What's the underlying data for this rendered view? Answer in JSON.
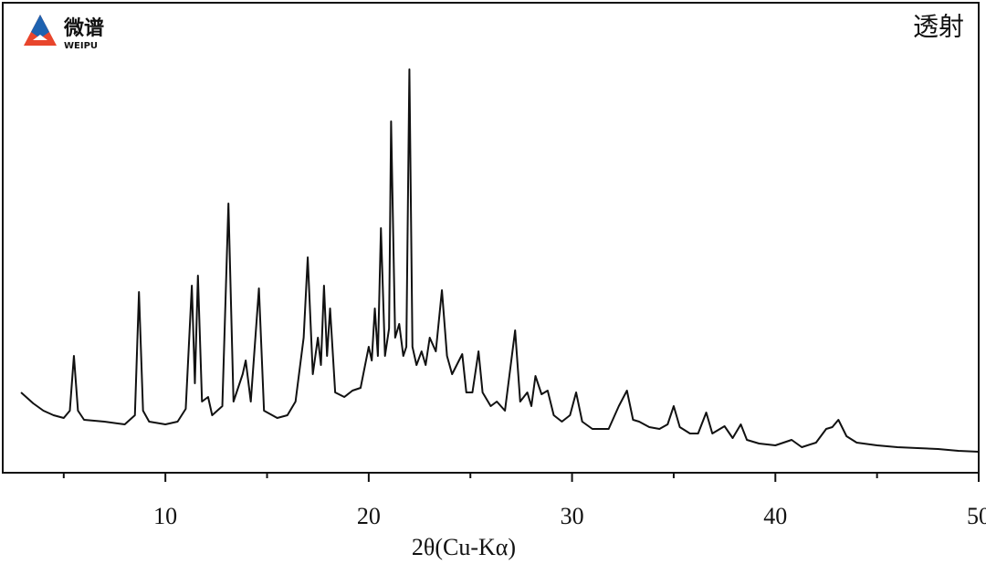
{
  "logo": {
    "name": "微谱",
    "sub": "WEIPU"
  },
  "chart_data": {
    "type": "line",
    "annotation": "透射",
    "x_label": "2θ(Cu-Kα)",
    "color": "#111111",
    "xlim": [
      2,
      50
    ],
    "xticks": [
      10,
      20,
      30,
      40,
      50
    ],
    "xminorticks": [
      5,
      15,
      25,
      35,
      45
    ],
    "ylim": [
      0,
      515
    ],
    "x": [
      2.9,
      3.5,
      4.0,
      4.5,
      5.0,
      5.3,
      5.5,
      5.7,
      6.0,
      7.0,
      8.0,
      8.5,
      8.7,
      8.9,
      9.2,
      10.0,
      10.6,
      11.0,
      11.3,
      11.45,
      11.6,
      11.8,
      12.1,
      12.3,
      12.8,
      13.1,
      13.35,
      13.8,
      13.95,
      14.2,
      14.6,
      14.85,
      15.5,
      16.0,
      16.4,
      16.8,
      17.0,
      17.25,
      17.5,
      17.65,
      17.8,
      17.95,
      18.1,
      18.35,
      18.8,
      19.2,
      19.6,
      20.0,
      20.15,
      20.3,
      20.45,
      20.6,
      20.8,
      21.0,
      21.1,
      21.3,
      21.5,
      21.7,
      21.85,
      22.0,
      22.15,
      22.35,
      22.6,
      22.8,
      23.0,
      23.3,
      23.6,
      23.85,
      24.1,
      24.6,
      24.8,
      25.1,
      25.4,
      25.6,
      26.0,
      26.3,
      26.7,
      27.2,
      27.45,
      27.8,
      28.0,
      28.2,
      28.5,
      28.8,
      29.1,
      29.5,
      29.9,
      30.2,
      30.5,
      31.0,
      31.8,
      32.3,
      32.7,
      33.0,
      33.3,
      33.8,
      34.3,
      34.7,
      35.0,
      35.3,
      35.8,
      36.2,
      36.6,
      36.9,
      37.5,
      37.9,
      38.3,
      38.6,
      39.2,
      40.0,
      40.8,
      41.3,
      42.0,
      42.5,
      42.8,
      43.1,
      43.5,
      44.0,
      45.0,
      46.0,
      47.0,
      48.0,
      49.0,
      50.0
    ],
    "values": [
      88,
      76,
      68,
      63,
      60,
      68,
      128,
      68,
      58,
      56,
      53,
      63,
      198,
      68,
      56,
      53,
      56,
      70,
      205,
      98,
      216,
      78,
      83,
      63,
      73,
      295,
      78,
      108,
      123,
      78,
      202,
      68,
      60,
      63,
      78,
      148,
      236,
      108,
      148,
      118,
      205,
      128,
      180,
      88,
      83,
      90,
      93,
      138,
      123,
      180,
      128,
      268,
      128,
      158,
      385,
      148,
      163,
      128,
      138,
      442,
      138,
      118,
      133,
      118,
      148,
      133,
      200,
      128,
      108,
      130,
      88,
      88,
      133,
      88,
      73,
      78,
      68,
      156,
      78,
      88,
      73,
      106,
      86,
      90,
      63,
      56,
      63,
      88,
      56,
      48,
      48,
      73,
      90,
      58,
      56,
      50,
      48,
      53,
      73,
      50,
      43,
      43,
      66,
      43,
      51,
      38,
      53,
      36,
      32,
      30,
      36,
      28,
      33,
      48,
      50,
      58,
      40,
      33,
      30,
      28,
      27,
      26,
      24,
      23
    ]
  }
}
